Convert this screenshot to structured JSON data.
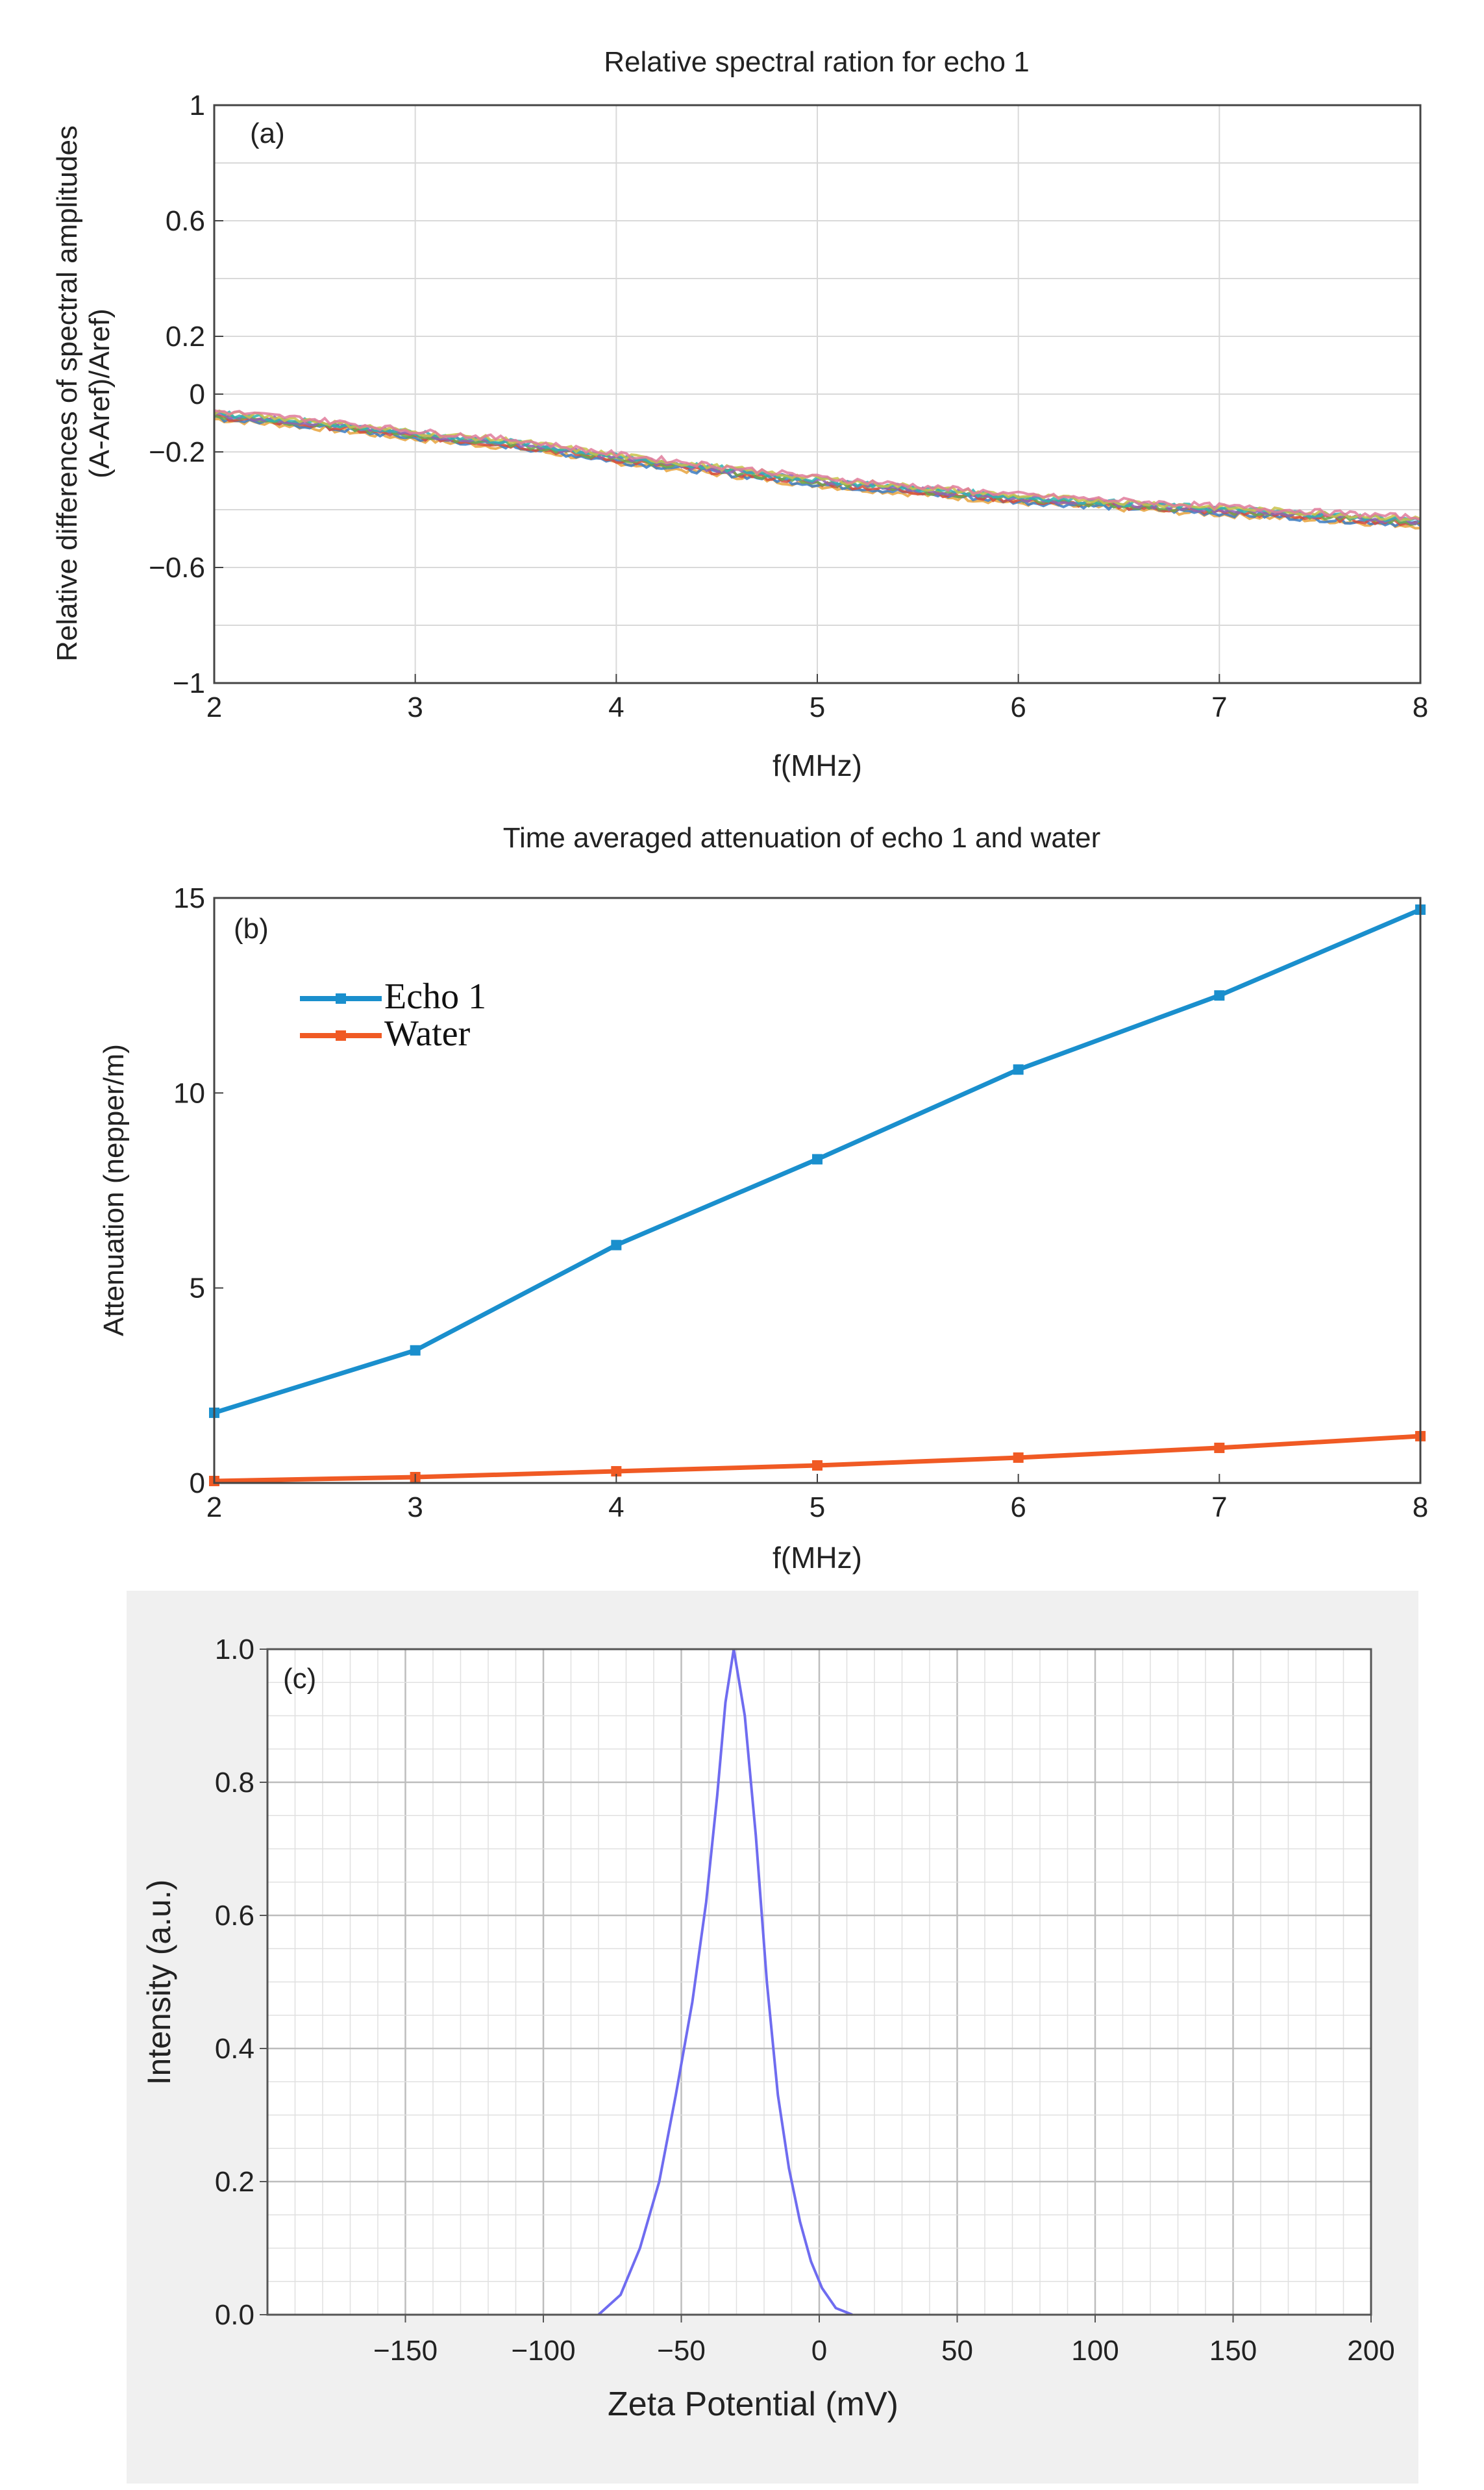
{
  "colors": {
    "echo": "#1a8fcd",
    "water": "#f05a24",
    "zeta": "#6f6cf0",
    "panel_bg": "#f0f0f0",
    "grid": "#d9d9d9"
  },
  "chart_data": [
    {
      "id": "a",
      "type": "line",
      "panel_label": "(a)",
      "title": "Relative spectral ration for echo 1",
      "xlabel": "f(MHz)",
      "ylabel_line1": "Relative differences of spectral amplitudes",
      "ylabel_line2": "(A-Aref)/Aref)",
      "xlim": [
        2,
        8
      ],
      "ylim": [
        -1,
        1
      ],
      "x_ticks": [
        "2",
        "3",
        "4",
        "5",
        "6",
        "7",
        "8"
      ],
      "y_ticks": [
        {
          "value": 1,
          "label": "1"
        },
        {
          "value": 0.6,
          "label": "0.6"
        },
        {
          "value": 0.2,
          "label": "0.2"
        },
        {
          "value": 0,
          "label": "0"
        },
        {
          "value": -0.2,
          "label": "−0.2"
        },
        {
          "value": -0.6,
          "label": "−0.6"
        },
        {
          "value": -1,
          "label": "−1"
        }
      ],
      "grid": true,
      "series_colors": [
        "#e8a33d",
        "#3b7dc4",
        "#d64c3c",
        "#6aa84f",
        "#8e63b5",
        "#2fb3b3",
        "#c9c24a",
        "#e07b9b"
      ],
      "x": [
        2,
        2.5,
        3,
        3.5,
        4,
        4.5,
        5,
        5.5,
        6,
        6.5,
        7,
        7.5,
        8
      ],
      "values": [
        -0.07,
        -0.1,
        -0.14,
        -0.17,
        -0.22,
        -0.26,
        -0.3,
        -0.33,
        -0.36,
        -0.38,
        -0.4,
        -0.42,
        -0.44
      ]
    },
    {
      "id": "b",
      "type": "line",
      "panel_label": "(b)",
      "title": "Time averaged attenuation of echo 1 and water",
      "xlabel": "f(MHz)",
      "ylabel": "Attenuation (nepper/m)",
      "xlim": [
        2,
        8
      ],
      "ylim": [
        0,
        15
      ],
      "x_ticks": [
        "2",
        "3",
        "4",
        "5",
        "6",
        "7",
        "8"
      ],
      "y_ticks": [
        {
          "value": 0,
          "label": "0"
        },
        {
          "value": 5,
          "label": "5"
        },
        {
          "value": 10,
          "label": "10"
        },
        {
          "value": 15,
          "label": "15"
        }
      ],
      "grid": false,
      "legend_position": "top-left",
      "x": [
        2,
        3,
        4,
        5,
        6,
        7,
        8
      ],
      "series": [
        {
          "name": "Echo 1",
          "values": [
            1.8,
            3.4,
            6.1,
            8.3,
            10.6,
            12.5,
            14.7
          ]
        },
        {
          "name": "Water",
          "values": [
            0.05,
            0.15,
            0.3,
            0.45,
            0.65,
            0.9,
            1.2
          ]
        }
      ]
    },
    {
      "id": "c",
      "type": "line",
      "panel_label": "(c)",
      "xlabel": "Zeta Potential (mV)",
      "ylabel": "Intensity (a.u.)",
      "xlim": [
        -200,
        200
      ],
      "ylim": [
        0,
        1
      ],
      "x_ticks": [
        {
          "value": -150,
          "label": "−150"
        },
        {
          "value": -100,
          "label": "−100"
        },
        {
          "value": -50,
          "label": "−50"
        },
        {
          "value": 0,
          "label": "0"
        },
        {
          "value": 50,
          "label": "50"
        },
        {
          "value": 100,
          "label": "100"
        },
        {
          "value": 150,
          "label": "150"
        },
        {
          "value": 200,
          "label": "200"
        }
      ],
      "y_ticks": [
        {
          "value": 0,
          "label": "0.0"
        },
        {
          "value": 0.2,
          "label": "0.2"
        },
        {
          "value": 0.4,
          "label": "0.4"
        },
        {
          "value": 0.6,
          "label": "0.6"
        },
        {
          "value": 0.8,
          "label": "0.8"
        },
        {
          "value": 1,
          "label": "1.0"
        }
      ],
      "grid": true,
      "x": [
        -80,
        -72,
        -65,
        -58,
        -52,
        -46,
        -41,
        -37,
        -34,
        -31,
        -27,
        -23,
        -19,
        -15,
        -11,
        -7,
        -3,
        1,
        6,
        12
      ],
      "values": [
        0.0,
        0.03,
        0.1,
        0.2,
        0.33,
        0.47,
        0.62,
        0.78,
        0.92,
        1.0,
        0.9,
        0.72,
        0.5,
        0.33,
        0.22,
        0.14,
        0.08,
        0.04,
        0.01,
        0.0
      ]
    }
  ]
}
